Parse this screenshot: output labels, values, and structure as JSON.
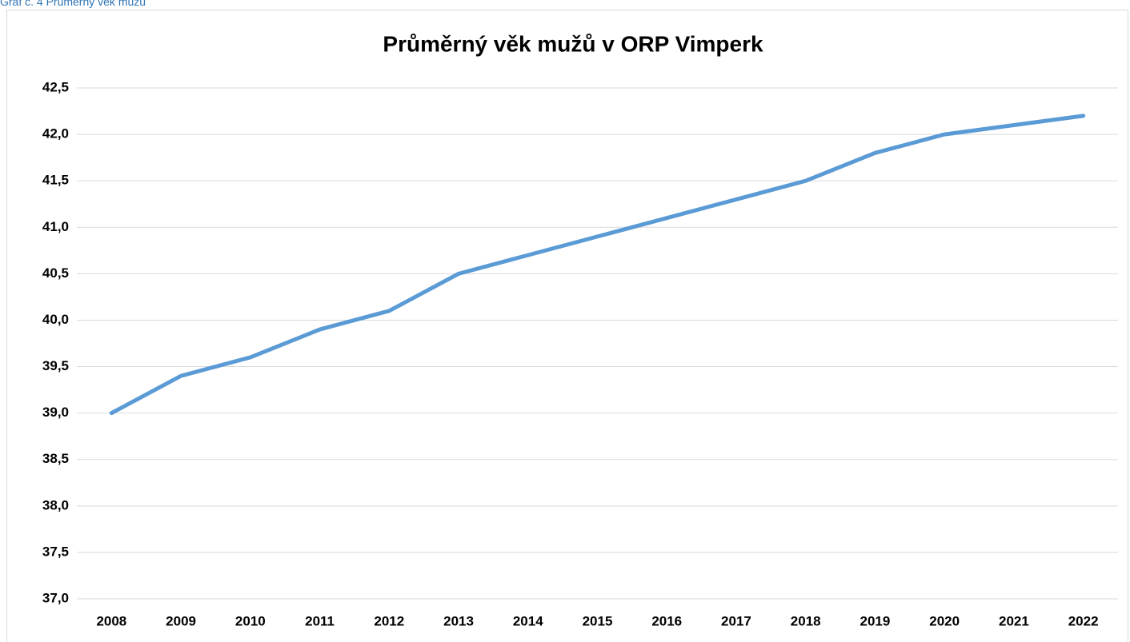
{
  "caption": "Graf č. 4 Průměrný věk mužů",
  "chart_data": {
    "type": "line",
    "title": "Průměrný věk mužů v ORP Vimperk",
    "categories": [
      "2008",
      "2009",
      "2010",
      "2011",
      "2012",
      "2013",
      "2014",
      "2015",
      "2016",
      "2017",
      "2018",
      "2019",
      "2020",
      "2021",
      "2022"
    ],
    "series": [
      {
        "name": "Průměrný věk mužů",
        "color": "#5b9bd5",
        "values": [
          39.0,
          39.4,
          39.6,
          39.9,
          40.1,
          40.5,
          40.7,
          40.9,
          41.1,
          41.3,
          41.5,
          41.8,
          42.0,
          42.1,
          42.2
        ]
      }
    ],
    "ylim": [
      37.0,
      42.5
    ],
    "yticks": [
      {
        "value": 37.0,
        "label": "37,0"
      },
      {
        "value": 37.5,
        "label": "37,5"
      },
      {
        "value": 38.0,
        "label": "38,0"
      },
      {
        "value": 38.5,
        "label": "38,5"
      },
      {
        "value": 39.0,
        "label": "39,0"
      },
      {
        "value": 39.5,
        "label": "39,5"
      },
      {
        "value": 40.0,
        "label": "40,0"
      },
      {
        "value": 40.5,
        "label": "40,5"
      },
      {
        "value": 41.0,
        "label": "41,0"
      },
      {
        "value": 41.5,
        "label": "41,5"
      },
      {
        "value": 42.0,
        "label": "42,0"
      },
      {
        "value": 42.5,
        "label": "42,5"
      }
    ],
    "grid": true
  }
}
